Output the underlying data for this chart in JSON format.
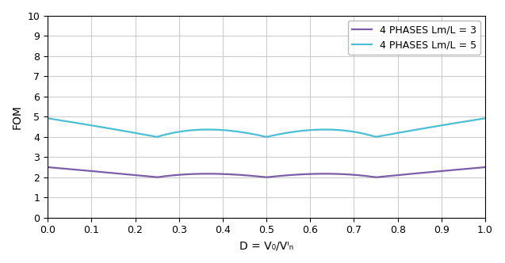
{
  "ylabel": "FOM",
  "xlabel": "D = V₀/Vᴵₙ",
  "xlim": [
    0,
    1.0
  ],
  "ylim": [
    0,
    10
  ],
  "xticks": [
    0,
    0.1,
    0.2,
    0.3,
    0.4,
    0.5,
    0.6,
    0.7,
    0.8,
    0.9,
    1.0
  ],
  "yticks": [
    0,
    1,
    2,
    3,
    4,
    5,
    6,
    7,
    8,
    9,
    10
  ],
  "color_lm3": "#7B5EA7",
  "color_lm5": "#4BBFD4",
  "legend_lm3": "4 PHASES Lm/L = 3",
  "legend_lm5": "4 PHASES Lm/L = 5",
  "linewidth": 1.6,
  "legend_fontsize": 9,
  "axis_fontsize": 10,
  "tick_fontsize": 9,
  "figsize": [
    6.37,
    3.32
  ],
  "dpi": 100,
  "grid_color": "#cccccc",
  "grid_linewidth": 0.8,
  "background_color": "#ffffff",
  "legend_loc": "upper right",
  "N": 4,
  "alpha_values": [
    3,
    5
  ]
}
